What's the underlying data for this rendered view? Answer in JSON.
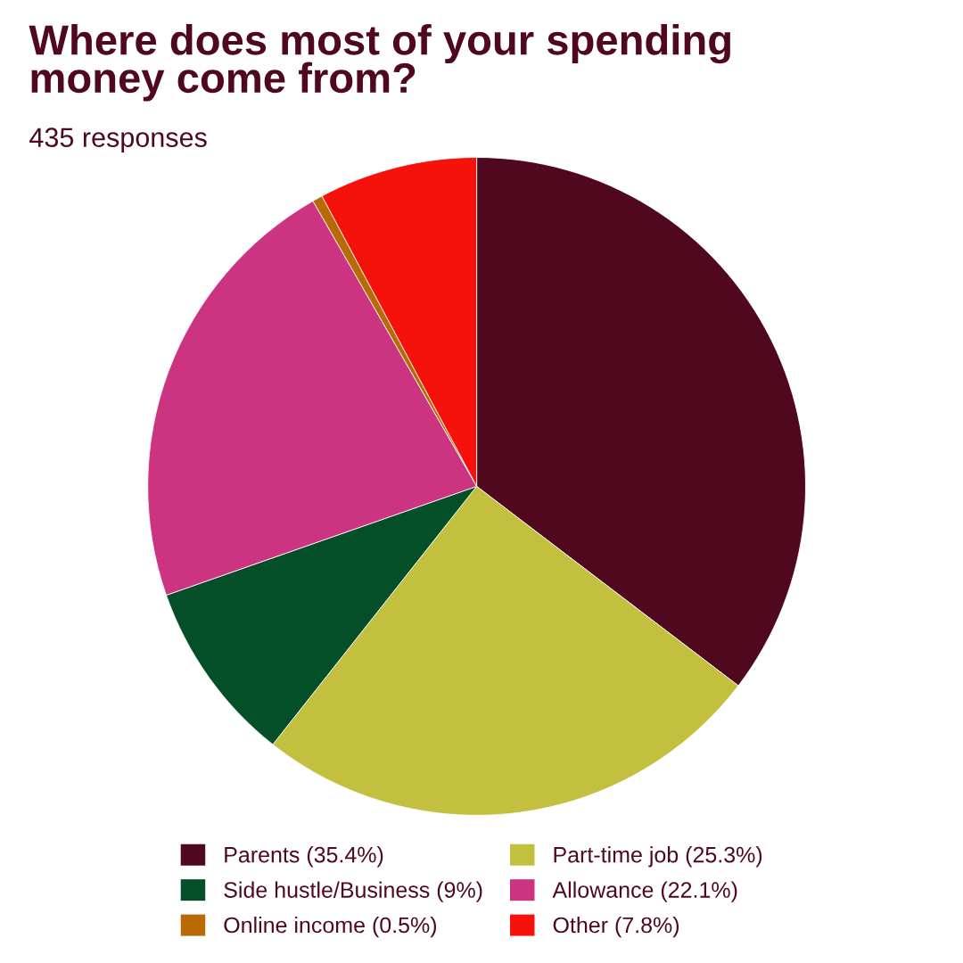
{
  "chart_data": {
    "type": "pie",
    "title": "Where does most of your spending\nmoney come from?",
    "subtitle": "435 responses",
    "categories": [
      "Parents (35.4%)",
      "Part-time job (25.3%)",
      "Side hustle/Business (9%)",
      "Allowance (22.1%)",
      "Online income (0.5%)",
      "Other (7.8%)"
    ],
    "values": [
      35.4,
      25.3,
      9,
      22.1,
      0.5,
      7.8
    ],
    "colors": [
      "#4f081e",
      "#c2c03e",
      "#054f28",
      "#cc3380",
      "#b86a04",
      "#f5120a"
    ],
    "legend": "bottom"
  }
}
